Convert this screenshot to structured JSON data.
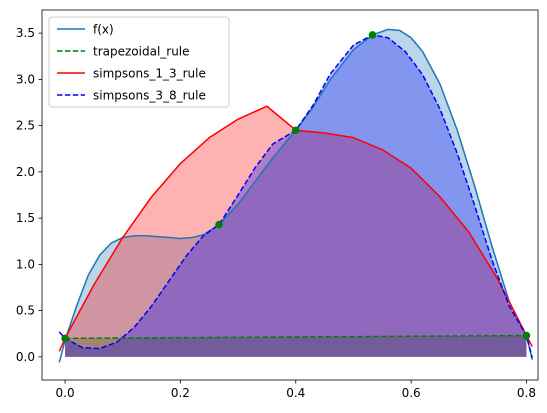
{
  "chart_data": {
    "type": "line",
    "title": "",
    "xlabel": "",
    "ylabel": "",
    "xlim": [
      -0.04,
      0.82
    ],
    "ylim": [
      -0.25,
      3.75
    ],
    "x_ticks": [
      0.0,
      0.2,
      0.4,
      0.6,
      0.8
    ],
    "x_tick_labels": [
      "0.0",
      "0.2",
      "0.4",
      "0.6",
      "0.8"
    ],
    "y_ticks": [
      0.0,
      0.5,
      1.0,
      1.5,
      2.0,
      2.5,
      3.0,
      3.5
    ],
    "y_tick_labels": [
      "0.0",
      "0.5",
      "1.0",
      "1.5",
      "2.0",
      "2.5",
      "3.0",
      "3.5"
    ],
    "grid": false,
    "legend_position": "top-left",
    "colors": {
      "f": "#1f77b4",
      "trapezoidal": "#008000",
      "simpsons_1_3": "#ff0000",
      "simpsons_3_8": "#0000ff",
      "nodes": "#008000"
    },
    "series": [
      {
        "name": "f(x)",
        "style": "solid",
        "x": [
          -0.01,
          0.0,
          0.02,
          0.04,
          0.06,
          0.08,
          0.1,
          0.12,
          0.14,
          0.16,
          0.18,
          0.2,
          0.22,
          0.24,
          0.267,
          0.3,
          0.33,
          0.36,
          0.4,
          0.43,
          0.46,
          0.5,
          0.533,
          0.56,
          0.58,
          0.6,
          0.62,
          0.65,
          0.68,
          0.71,
          0.74,
          0.77,
          0.8,
          0.81
        ],
        "y": [
          -0.06,
          0.18,
          0.55,
          0.88,
          1.1,
          1.23,
          1.29,
          1.31,
          1.31,
          1.3,
          1.29,
          1.28,
          1.29,
          1.32,
          1.43,
          1.65,
          1.9,
          2.15,
          2.45,
          2.7,
          3.0,
          3.32,
          3.48,
          3.54,
          3.53,
          3.45,
          3.3,
          2.95,
          2.45,
          1.85,
          1.2,
          0.6,
          0.23,
          -0.03
        ]
      },
      {
        "name": "trapezoidal_rule",
        "style": "dashed",
        "x": [
          0.0,
          0.8
        ],
        "y": [
          0.2,
          0.23
        ]
      },
      {
        "name": "simpsons_1_3_rule",
        "style": "solid",
        "x": [
          -0.01,
          0.0,
          0.05,
          0.1,
          0.15,
          0.2,
          0.25,
          0.3,
          0.35,
          0.4,
          0.45,
          0.5,
          0.55,
          0.6,
          0.65,
          0.7,
          0.75,
          0.8,
          0.81
        ],
        "y": [
          0.06,
          0.2,
          0.78,
          1.29,
          1.73,
          2.09,
          2.37,
          2.57,
          2.71,
          2.45,
          2.42,
          2.37,
          2.24,
          2.04,
          1.73,
          1.35,
          0.84,
          0.23,
          0.11
        ]
      },
      {
        "name": "simpsons_3_8_rule",
        "style": "dashed",
        "x": [
          -0.01,
          0.0,
          0.03,
          0.06,
          0.09,
          0.12,
          0.15,
          0.18,
          0.21,
          0.24,
          0.267,
          0.3,
          0.33,
          0.36,
          0.4,
          0.43,
          0.46,
          0.5,
          0.533,
          0.56,
          0.59,
          0.62,
          0.65,
          0.68,
          0.71,
          0.74,
          0.77,
          0.8,
          0.81
        ],
        "y": [
          0.27,
          0.2,
          0.1,
          0.09,
          0.16,
          0.32,
          0.55,
          0.82,
          1.09,
          1.31,
          1.43,
          1.75,
          2.05,
          2.3,
          2.45,
          2.72,
          3.06,
          3.37,
          3.48,
          3.45,
          3.3,
          3.05,
          2.68,
          2.2,
          1.64,
          1.05,
          0.55,
          0.23,
          -0.01
        ]
      }
    ],
    "nodes": {
      "x": [
        0.0,
        0.267,
        0.4,
        0.533,
        0.8
      ],
      "y": [
        0.2,
        1.43,
        2.45,
        3.48,
        0.23
      ]
    },
    "fills": [
      {
        "series": "f(x)",
        "color": "#1f77b4",
        "opacity": 0.3
      },
      {
        "series": "trapezoidal_rule",
        "color": "#008000",
        "opacity": 0.3
      },
      {
        "series": "simpsons_1_3_rule",
        "color": "#ff0000",
        "opacity": 0.3
      },
      {
        "series": "simpsons_3_8_rule",
        "color": "#0000ff",
        "opacity": 0.3
      }
    ]
  }
}
